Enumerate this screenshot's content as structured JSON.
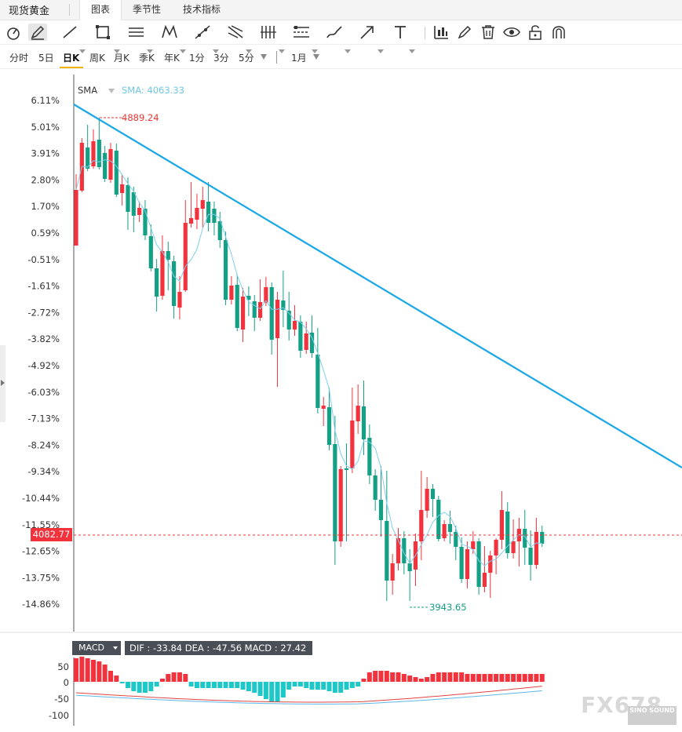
{
  "tabbar": {
    "title": "现货黄金",
    "tabs": [
      {
        "label": "图表",
        "active": true
      },
      {
        "label": "季节性",
        "active": false
      },
      {
        "label": "技术指标",
        "active": false
      }
    ]
  },
  "toolbar": {
    "tools": [
      "cursor-icon",
      "pen-icon",
      "line-icon",
      "rectangle-icon",
      "parallel-lines-icon",
      "pattern-icon",
      "ray-icon",
      "cross-lines-icon",
      "fib-icon",
      "channel-icon",
      "brush-icon",
      "arrow-icon",
      "text-icon",
      "measure-icon",
      "pencil-icon",
      "trash-icon",
      "eye-icon",
      "lock-icon",
      "magnet-icon"
    ]
  },
  "periodbar": {
    "periods": [
      "分时",
      "5日",
      "日K",
      "周K",
      "月K",
      "季K",
      "年K",
      "1分",
      "3分",
      "5分"
    ],
    "active": "日K",
    "range": "1月"
  },
  "indicator": {
    "name": "SMA",
    "value_text": "SMA: 4063.33"
  },
  "price_axis": {
    "ticks": [
      "6.11%",
      "5.01%",
      "3.91%",
      "2.80%",
      "1.70%",
      "0.59%",
      "-0.51%",
      "-1.61%",
      "-2.72%",
      "-3.82%",
      "-4.92%",
      "-6.03%",
      "-7.13%",
      "-8.24%",
      "-9.34%",
      "-10.44%",
      "-11.55%",
      "-12.65%",
      "-13.75%",
      "-14.86%"
    ]
  },
  "annotations": {
    "high_label": "4889.24",
    "low_label": "3943.65",
    "current_price": "4082.77"
  },
  "macd": {
    "button_label": "MACD",
    "info": "DIF : -33.84  DEA : -47.56  MACD : 27.42",
    "axis_ticks": [
      "50",
      "0",
      "-50",
      "-100"
    ]
  },
  "chart_data": {
    "type": "candlestick",
    "series": [
      {
        "name": "SMA",
        "last": 4063.33
      }
    ],
    "high": 4889.24,
    "low": 3943.65,
    "last": 4082.77,
    "macd": {
      "DIF": -33.84,
      "DEA": -47.56,
      "MACD": 27.42
    }
  },
  "colors": {
    "up": "#f2323c",
    "down": "#14a085",
    "trendline": "#1aa8e6",
    "sma": "#7fcfee",
    "dea": "#5fb8e6"
  },
  "watermark": {
    "brand": "FX678",
    "sub": "SINO SOUND"
  }
}
